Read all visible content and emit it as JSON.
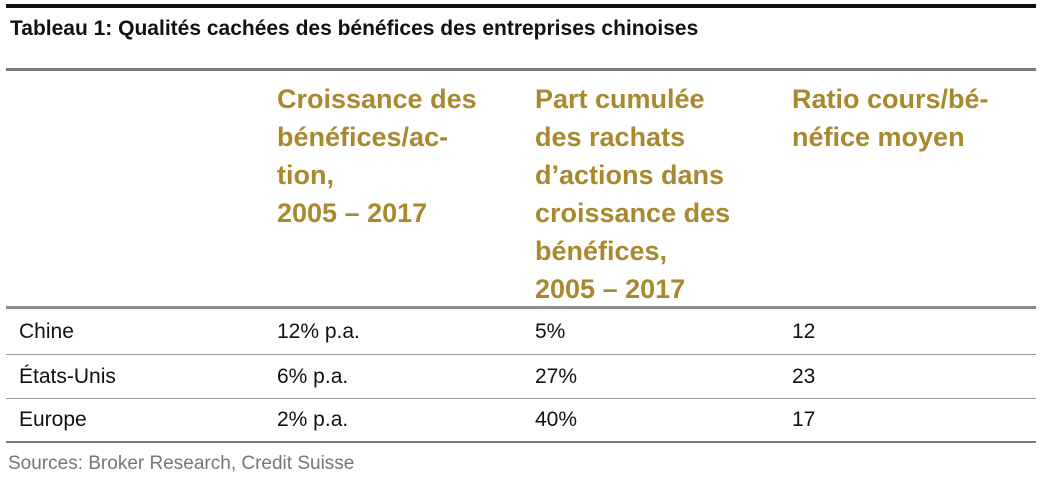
{
  "title": "Tableau 1: Qualités cachées des bénéfices des entreprises chinoises",
  "columns": [
    "",
    "Croissance des\nbénéfices/ac-\ntion,\n2005 – 2017",
    "Part cumulée\ndes rachats\nd’actions dans\ncroissance des\nbénéfices,\n2005 – 2017",
    "Ratio cours/bé-\nnéfice moyen"
  ],
  "rows": [
    {
      "label": "Chine",
      "growth": "12% p.a.",
      "buyback": "5%",
      "pe": "12"
    },
    {
      "label": "États-Unis",
      "growth": "6% p.a.",
      "buyback": "27%",
      "pe": "23"
    },
    {
      "label": "Europe",
      "growth": "2% p.a.",
      "buyback": "40%",
      "pe": "17"
    }
  ],
  "source": "Sources: Broker Research, Credit Suisse",
  "colors": {
    "header_text": "#a8892f",
    "body_text": "#111111",
    "source_text": "#777777",
    "rule_dark": "#111111",
    "rule_grey": "#8c8c8c"
  }
}
